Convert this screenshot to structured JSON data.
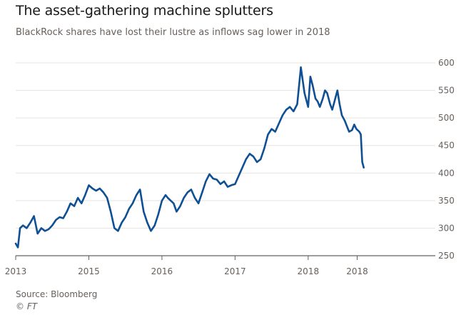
{
  "header": {
    "title": "The asset-gathering machine splutters",
    "subtitle": "BlackRock shares have lost their lustre as inflows sag lower in 2018"
  },
  "footer": {
    "source": "Source: Bloomberg",
    "credit": "© FT"
  },
  "colors": {
    "line": "#0f4f94",
    "grid": "#e8e3dd",
    "axis": "#66605c"
  },
  "chart_data": {
    "type": "line",
    "title": "The asset-gathering machine splutters",
    "subtitle": "BlackRock shares have lost their lustre as inflows sag lower in 2018",
    "xlabel": "",
    "ylabel": "",
    "grid": true,
    "y_axis_position": "right",
    "ylim": [
      250,
      600
    ],
    "yticks": [
      250,
      300,
      350,
      400,
      450,
      500,
      550,
      600
    ],
    "xlim": [
      2013.0,
      2018.7
    ],
    "xtick_labels": [
      {
        "x": 2013.0,
        "label": "2013"
      },
      {
        "x": 2014.0,
        "label": "2015"
      },
      {
        "x": 2015.0,
        "label": "2016"
      },
      {
        "x": 2016.0,
        "label": "2017"
      },
      {
        "x": 2017.0,
        "label": "2018"
      },
      {
        "x": 2017.67,
        "label": "2018"
      }
    ],
    "series": [
      {
        "x": [
          2013.0,
          2013.03,
          2013.06,
          2013.1,
          2013.15,
          2013.2,
          2013.25,
          2013.3,
          2013.35,
          2013.4,
          2013.45,
          2013.5,
          2013.55,
          2013.6,
          2013.65,
          2013.7,
          2013.75,
          2013.8,
          2013.85,
          2013.9,
          2013.95,
          2014.0,
          2014.05,
          2014.1,
          2014.15,
          2014.2,
          2014.25,
          2014.3,
          2014.35,
          2014.4,
          2014.45,
          2014.5,
          2014.55,
          2014.6,
          2014.65,
          2014.7,
          2014.75,
          2014.8,
          2014.85,
          2014.9,
          2014.95,
          2015.0,
          2015.05,
          2015.08,
          2015.12,
          2015.16,
          2015.2,
          2015.25,
          2015.3,
          2015.35,
          2015.4,
          2015.45,
          2015.5,
          2015.55,
          2015.6,
          2015.65,
          2015.7,
          2015.75,
          2015.8,
          2015.85,
          2015.9,
          2015.95,
          2016.0,
          2016.05,
          2016.1,
          2016.15,
          2016.2,
          2016.25,
          2016.3,
          2016.35,
          2016.4,
          2016.45,
          2016.5,
          2016.55,
          2016.6,
          2016.65,
          2016.7,
          2016.75,
          2016.8,
          2016.85,
          2016.9,
          2016.95,
          2017.0,
          2017.03,
          2017.06,
          2017.1,
          2017.13,
          2017.16,
          2017.2,
          2017.23,
          2017.26,
          2017.3,
          2017.33,
          2017.36,
          2017.4,
          2017.43,
          2017.46,
          2017.5,
          2017.53,
          2017.56,
          2017.6,
          2017.63,
          2017.66,
          2017.7,
          2017.72,
          2017.74,
          2017.76
        ],
        "y": [
          272,
          265,
          300,
          305,
          300,
          310,
          322,
          290,
          300,
          295,
          298,
          305,
          315,
          320,
          318,
          330,
          345,
          340,
          355,
          345,
          360,
          378,
          372,
          368,
          372,
          365,
          355,
          330,
          300,
          295,
          310,
          320,
          335,
          345,
          360,
          370,
          330,
          310,
          295,
          305,
          325,
          350,
          360,
          355,
          350,
          345,
          330,
          340,
          355,
          365,
          370,
          355,
          345,
          365,
          385,
          398,
          390,
          388,
          380,
          385,
          375,
          378,
          380,
          395,
          410,
          425,
          435,
          430,
          420,
          425,
          445,
          470,
          480,
          475,
          490,
          505,
          515,
          520,
          512,
          525,
          592,
          545,
          520,
          575,
          560,
          535,
          530,
          520,
          535,
          550,
          545,
          525,
          515,
          530,
          550,
          525,
          505,
          495,
          485,
          475,
          478,
          488,
          480,
          475,
          470,
          420,
          410
        ]
      }
    ]
  }
}
